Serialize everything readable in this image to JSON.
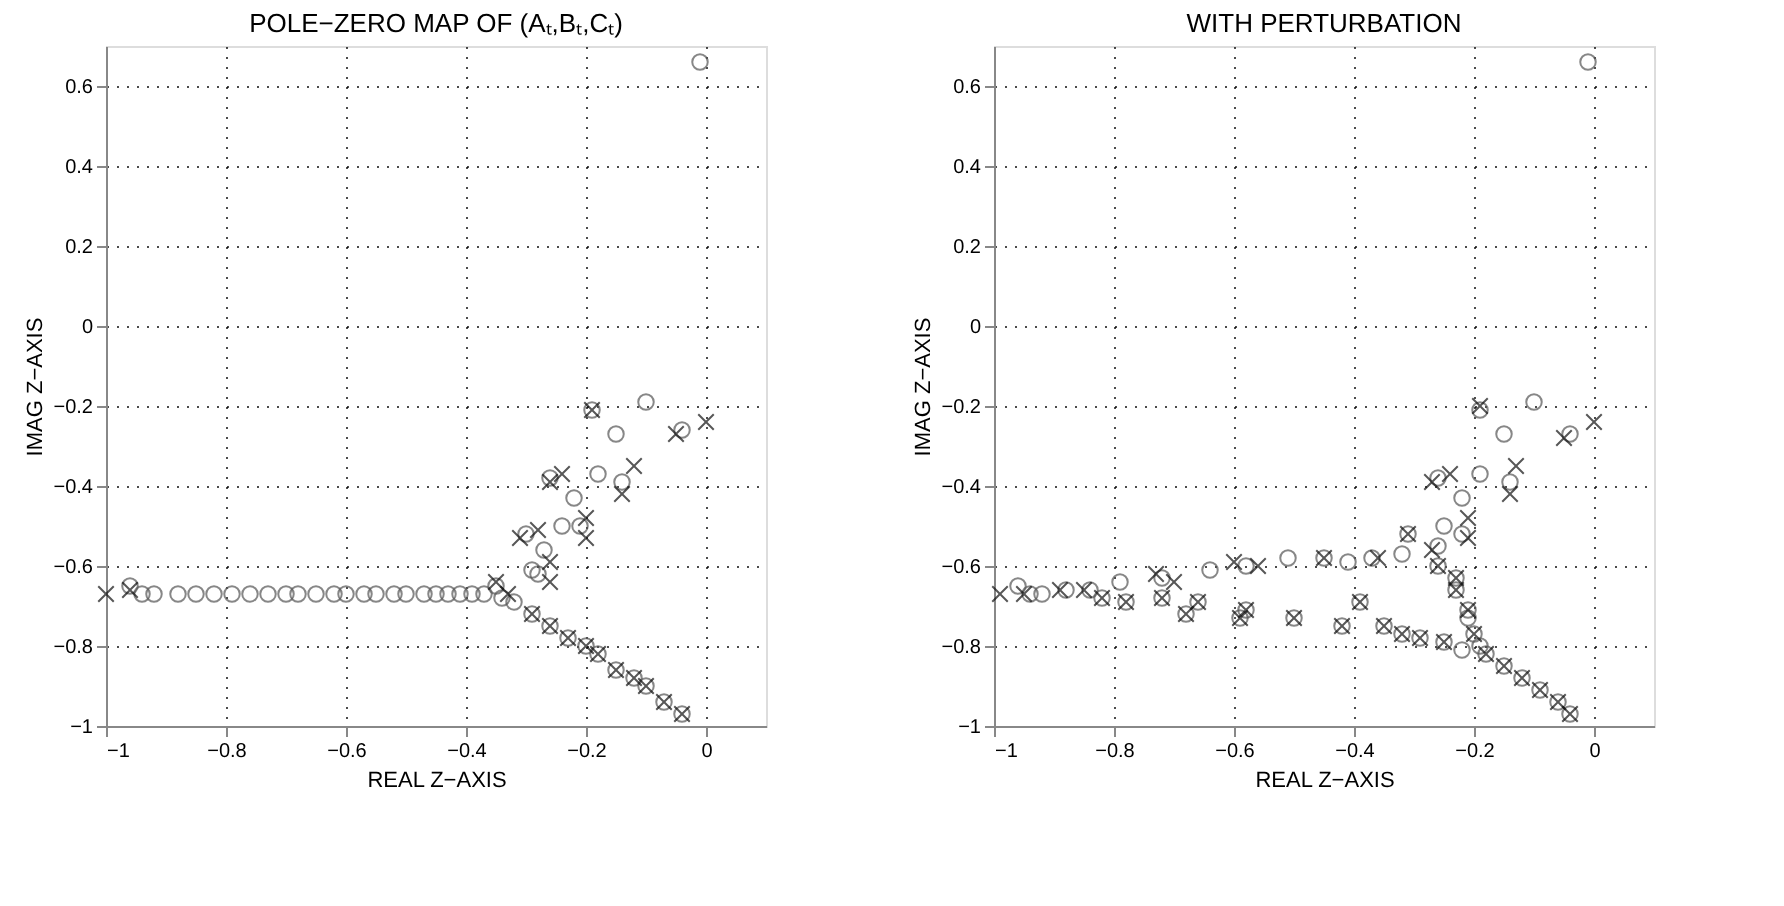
{
  "chart_data": [
    {
      "type": "scatter",
      "title": "POLE−ZERO MAP OF (Aₜ,Bₜ,Cₜ)",
      "xlabel": "REAL Z−AXIS",
      "ylabel": "IMAG Z−AXIS",
      "xlim": [
        -1,
        0.1
      ],
      "ylim": [
        -1,
        0.7
      ],
      "xticks": [
        -1,
        -0.8,
        -0.6,
        -0.4,
        -0.2,
        0
      ],
      "yticks": [
        -1,
        -0.8,
        -0.6,
        -0.4,
        -0.2,
        0,
        0.2,
        0.4,
        0.6
      ],
      "grid": true,
      "series": [
        {
          "marker": "circle",
          "color": "#555555",
          "x": [
            -0.01,
            -0.1,
            -0.04,
            -0.15,
            -0.19,
            -0.18,
            -0.14,
            -0.26,
            -0.22,
            -0.24,
            -0.21,
            -0.3,
            -0.27,
            -0.28,
            -0.29,
            -0.96,
            -0.94,
            -0.92,
            -0.88,
            -0.85,
            -0.82,
            -0.79,
            -0.76,
            -0.73,
            -0.7,
            -0.68,
            -0.65,
            -0.62,
            -0.6,
            -0.57,
            -0.55,
            -0.52,
            -0.5,
            -0.47,
            -0.45,
            -0.43,
            -0.41,
            -0.39,
            -0.37,
            -0.35,
            -0.34,
            -0.32,
            -0.29,
            -0.26,
            -0.23,
            -0.2,
            -0.18,
            -0.15,
            -0.12,
            -0.1,
            -0.07,
            -0.04
          ],
          "values": [
            0.66,
            -0.19,
            -0.26,
            -0.27,
            -0.21,
            -0.37,
            -0.39,
            -0.38,
            -0.43,
            -0.5,
            -0.5,
            -0.52,
            -0.56,
            -0.62,
            -0.61,
            -0.65,
            -0.67,
            -0.67,
            -0.67,
            -0.67,
            -0.67,
            -0.67,
            -0.67,
            -0.67,
            -0.67,
            -0.67,
            -0.67,
            -0.67,
            -0.67,
            -0.67,
            -0.67,
            -0.67,
            -0.67,
            -0.67,
            -0.67,
            -0.67,
            -0.67,
            -0.67,
            -0.67,
            -0.65,
            -0.68,
            -0.69,
            -0.72,
            -0.75,
            -0.78,
            -0.8,
            -0.82,
            -0.86,
            -0.88,
            -0.9,
            -0.94,
            -0.97
          ]
        },
        {
          "marker": "cross",
          "color": "#111111",
          "x": [
            0.0,
            -0.05,
            -0.19,
            -0.12,
            -0.14,
            -0.26,
            -0.24,
            -0.2,
            -0.2,
            -0.31,
            -0.28,
            -0.26,
            -0.26,
            -0.35,
            -0.33,
            -1.0,
            -0.96,
            -0.29,
            -0.26,
            -0.23,
            -0.2,
            -0.18,
            -0.15,
            -0.12,
            -0.1,
            -0.07,
            -0.04
          ],
          "values": [
            -0.24,
            -0.27,
            -0.21,
            -0.35,
            -0.42,
            -0.39,
            -0.37,
            -0.48,
            -0.53,
            -0.53,
            -0.51,
            -0.59,
            -0.64,
            -0.64,
            -0.67,
            -0.67,
            -0.66,
            -0.72,
            -0.75,
            -0.78,
            -0.8,
            -0.82,
            -0.86,
            -0.88,
            -0.9,
            -0.94,
            -0.97
          ]
        }
      ]
    },
    {
      "type": "scatter",
      "title": "WITH PERTURBATION",
      "xlabel": "REAL Z−AXIS",
      "ylabel": "IMAG Z−AXIS",
      "xlim": [
        -1,
        0.1
      ],
      "ylim": [
        -1,
        0.7
      ],
      "xticks": [
        -1,
        -0.8,
        -0.6,
        -0.4,
        -0.2,
        0
      ],
      "yticks": [
        -1,
        -0.8,
        -0.6,
        -0.4,
        -0.2,
        0,
        0.2,
        0.4,
        0.6
      ],
      "grid": true,
      "series": [
        {
          "marker": "circle",
          "color": "#555555",
          "x": [
            -0.01,
            -0.1,
            -0.04,
            -0.15,
            -0.19,
            -0.19,
            -0.14,
            -0.26,
            -0.22,
            -0.25,
            -0.22,
            -0.31,
            -0.32,
            -0.37,
            -0.41,
            -0.45,
            -0.51,
            -0.58,
            -0.64,
            -0.72,
            -0.79,
            -0.78,
            -0.82,
            -0.84,
            -0.88,
            -0.92,
            -0.94,
            -0.96,
            -0.72,
            -0.68,
            -0.66,
            -0.59,
            -0.58,
            -0.5,
            -0.42,
            -0.39,
            -0.35,
            -0.32,
            -0.29,
            -0.25,
            -0.22,
            -0.26,
            -0.26,
            -0.23,
            -0.23,
            -0.21,
            -0.21,
            -0.2,
            -0.19,
            -0.18,
            -0.15,
            -0.12,
            -0.09,
            -0.06,
            -0.04
          ],
          "values": [
            0.66,
            -0.19,
            -0.27,
            -0.27,
            -0.21,
            -0.37,
            -0.39,
            -0.38,
            -0.43,
            -0.5,
            -0.52,
            -0.52,
            -0.57,
            -0.58,
            -0.59,
            -0.58,
            -0.58,
            -0.6,
            -0.61,
            -0.63,
            -0.64,
            -0.69,
            -0.68,
            -0.66,
            -0.66,
            -0.67,
            -0.67,
            -0.65,
            -0.68,
            -0.72,
            -0.69,
            -0.73,
            -0.71,
            -0.73,
            -0.75,
            -0.69,
            -0.75,
            -0.77,
            -0.78,
            -0.79,
            -0.81,
            -0.55,
            -0.6,
            -0.63,
            -0.66,
            -0.71,
            -0.73,
            -0.77,
            -0.8,
            -0.82,
            -0.85,
            -0.88,
            -0.91,
            -0.94,
            -0.97
          ]
        },
        {
          "marker": "cross",
          "color": "#111111",
          "x": [
            0.0,
            -0.05,
            -0.19,
            -0.13,
            -0.14,
            -0.27,
            -0.24,
            -0.21,
            -0.21,
            -0.31,
            -0.27,
            -0.36,
            -0.45,
            -0.6,
            -0.56,
            -0.73,
            -0.7,
            -0.99,
            -0.95,
            -0.89,
            -0.85,
            -0.78,
            -0.82,
            -0.72,
            -0.68,
            -0.66,
            -0.59,
            -0.58,
            -0.5,
            -0.42,
            -0.39,
            -0.35,
            -0.32,
            -0.29,
            -0.25,
            -0.26,
            -0.23,
            -0.23,
            -0.21,
            -0.2,
            -0.18,
            -0.15,
            -0.12,
            -0.09,
            -0.06,
            -0.04
          ],
          "values": [
            -0.24,
            -0.28,
            -0.2,
            -0.35,
            -0.42,
            -0.39,
            -0.37,
            -0.48,
            -0.53,
            -0.52,
            -0.56,
            -0.58,
            -0.58,
            -0.59,
            -0.6,
            -0.62,
            -0.64,
            -0.67,
            -0.67,
            -0.66,
            -0.66,
            -0.69,
            -0.68,
            -0.68,
            -0.72,
            -0.69,
            -0.73,
            -0.71,
            -0.73,
            -0.75,
            -0.69,
            -0.75,
            -0.77,
            -0.78,
            -0.79,
            -0.6,
            -0.63,
            -0.66,
            -0.71,
            -0.77,
            -0.82,
            -0.85,
            -0.88,
            -0.91,
            -0.94,
            -0.97
          ]
        }
      ]
    }
  ]
}
